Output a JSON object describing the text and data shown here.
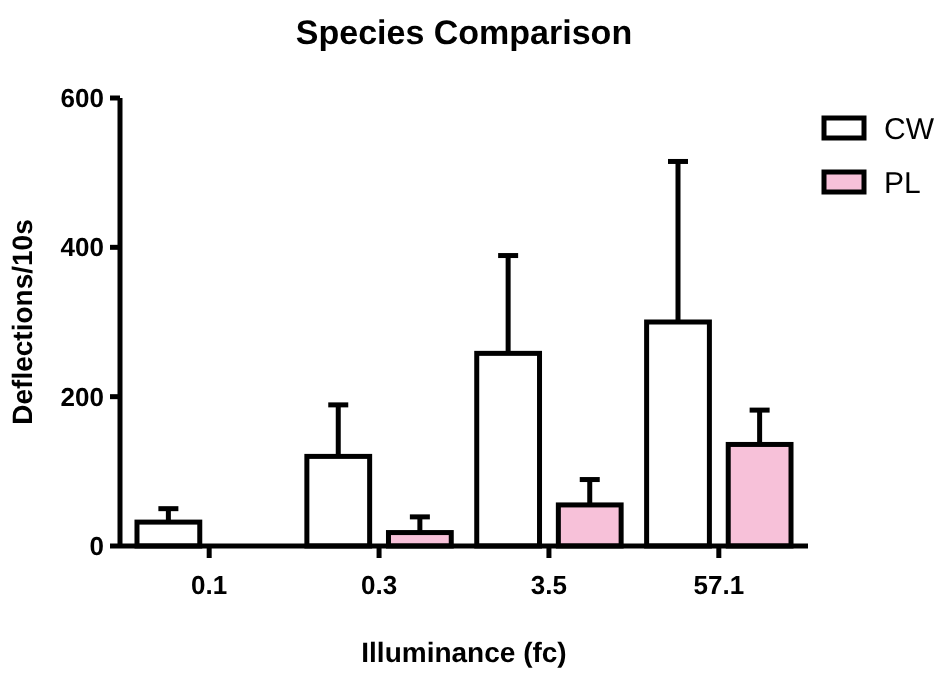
{
  "chart_data": {
    "type": "bar",
    "title": "Species Comparison",
    "xlabel": "Illuminance (fc)",
    "ylabel": "Deflections/10s",
    "categories": [
      "0.1",
      "0.3",
      "3.5",
      "57.1"
    ],
    "series": [
      {
        "name": "CW",
        "color": "#ffffff",
        "values": [
          32,
          120,
          258,
          300
        ],
        "errors": [
          [
            32,
            50
          ],
          [
            120,
            189
          ],
          [
            258,
            389
          ],
          [
            300,
            515
          ]
        ]
      },
      {
        "name": "PL",
        "color": "#f7c1d9",
        "values": [
          null,
          18,
          55,
          136
        ],
        "errors": [
          null,
          [
            18,
            39
          ],
          [
            55,
            89
          ],
          [
            136,
            182
          ]
        ]
      }
    ],
    "ylim": [
      0,
      600
    ],
    "yticks": [
      0,
      200,
      400,
      600
    ],
    "grid": false,
    "legend": "top right"
  }
}
